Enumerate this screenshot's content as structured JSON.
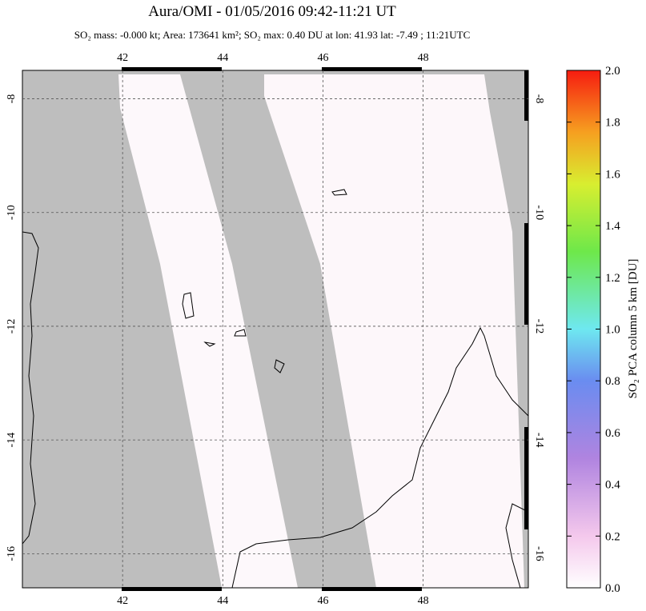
{
  "chart_data": {
    "type": "map",
    "title": "Aura/OMI - 01/05/2016 09:42-11:21 UT",
    "subtitle": "SO₂ mass: -0.000 kt; Area: 173641 km²; SO₂ max: 0.40 DU at lon: 41.93 lat: -7.49 ; 11:21UTC",
    "xlim": [
      40,
      50.1
    ],
    "ylim": [
      -16.6,
      -7.5
    ],
    "xticks": [
      42,
      44,
      46,
      48
    ],
    "yticks": [
      -8,
      -10,
      -12,
      -14,
      -16
    ],
    "grid": true,
    "colorbar": {
      "label": "SO₂ PCA column 5 km [DU]",
      "lim": [
        0,
        2
      ],
      "ticks": [
        {
          "value": 0,
          "label": "0.0"
        },
        {
          "value": 0.2,
          "label": "0.2"
        },
        {
          "value": 0.4,
          "label": "0.4"
        },
        {
          "value": 0.6,
          "label": "0.6"
        },
        {
          "value": 0.8,
          "label": "0.8"
        },
        {
          "value": 1,
          "label": "1.0"
        },
        {
          "value": 1.2,
          "label": "1.2"
        },
        {
          "value": 1.4,
          "label": "1.4"
        },
        {
          "value": 1.6,
          "label": "1.6"
        },
        {
          "value": 1.8,
          "label": "1.8"
        },
        {
          "value": 2,
          "label": "2.0"
        }
      ]
    }
  }
}
